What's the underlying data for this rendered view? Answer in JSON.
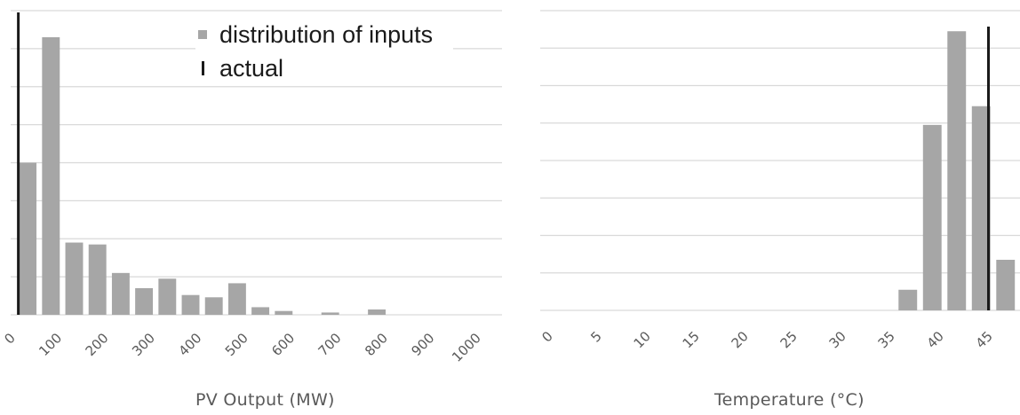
{
  "colors": {
    "bar": "#a6a6a6",
    "actual": "#1a1a1a",
    "grid": "#d9d9d9",
    "tick_text": "#595959"
  },
  "legend": {
    "bars_label": "distribution of inputs",
    "actual_label": "actual"
  },
  "chart_data": [
    {
      "type": "bar",
      "xlabel": "PV Output (MW)",
      "ylabel": "",
      "x_tick_labels": [
        "0",
        "100",
        "200",
        "300",
        "400",
        "500",
        "600",
        "700",
        "800",
        "900",
        "1000"
      ],
      "xlim": [
        0,
        1000
      ],
      "bin_width": 50,
      "bin_starts": [
        0,
        50,
        100,
        150,
        200,
        250,
        300,
        350,
        400,
        450,
        500,
        550,
        600,
        650,
        700,
        750,
        800,
        850,
        900,
        950
      ],
      "values": [
        40,
        73,
        19,
        18.5,
        11,
        7,
        9.5,
        5.2,
        4.6,
        8.3,
        2,
        1,
        0,
        0.6,
        0,
        1.4,
        0,
        0,
        0,
        0
      ],
      "ylim": [
        0,
        80
      ],
      "grid": true,
      "actual": 5,
      "legend_position": "top-right"
    },
    {
      "type": "bar",
      "xlabel": "Temperature (°C)",
      "ylabel": "",
      "x_tick_labels": [
        "0",
        "5",
        "10",
        "15",
        "20",
        "25",
        "30",
        "35",
        "40",
        "45"
      ],
      "xlim": [
        0,
        45
      ],
      "bin_width": 2.5,
      "bin_starts": [
        35,
        37.5,
        40,
        42.5,
        45
      ],
      "values": [
        5.5,
        49.5,
        74.5,
        54.5,
        13.5
      ],
      "ylim": [
        0,
        80
      ],
      "grid": true,
      "actual": 44.5
    }
  ]
}
